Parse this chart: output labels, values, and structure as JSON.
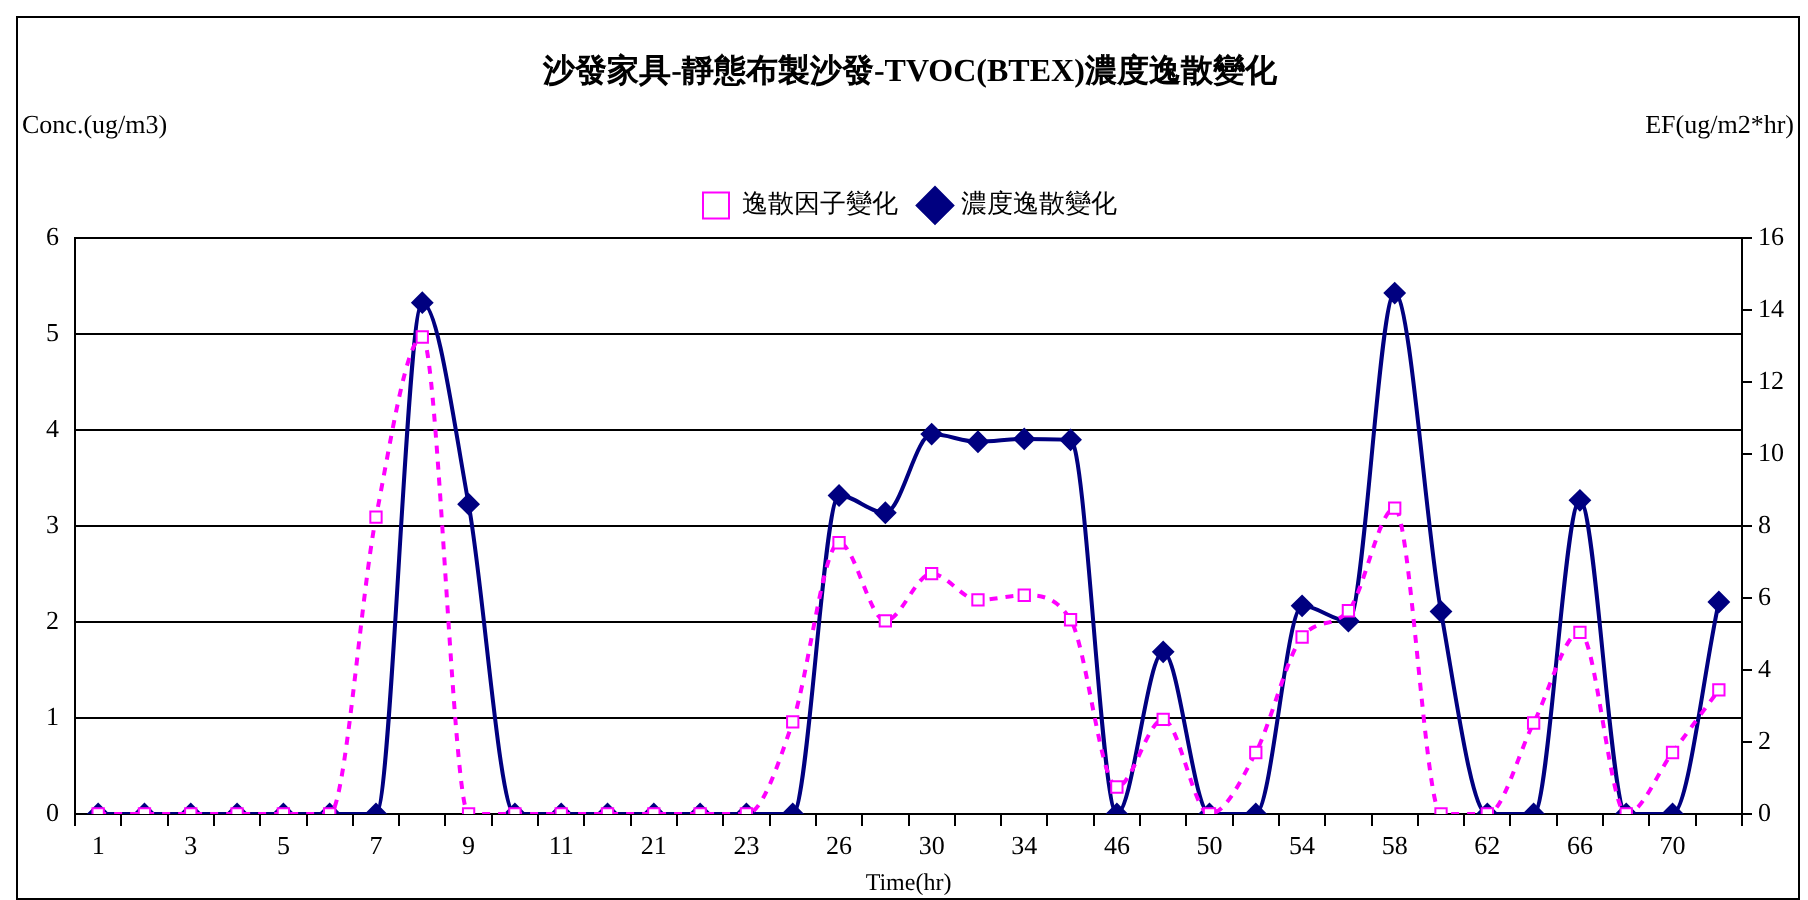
{
  "chart_data": {
    "type": "line",
    "title": "沙發家具-靜態布製沙發-TVOC(BTEX)濃度逸散變化",
    "xlabel": "Time(hr)",
    "ylabel": "Conc.(ug/m3)",
    "y2label": "EF(ug/m2*hr)",
    "categories": [
      "1",
      null,
      "3",
      null,
      "5",
      null,
      "7",
      null,
      "9",
      null,
      "11",
      null,
      "21",
      null,
      "23",
      null,
      "26",
      null,
      "30",
      null,
      "34",
      null,
      "46",
      null,
      "50",
      null,
      "54",
      null,
      "58",
      null,
      "62",
      null,
      "66",
      null,
      "70",
      null
    ],
    "series": [
      {
        "name": "濃度逸散變化",
        "color": "#000080",
        "marker": "diamond",
        "line_style": "solid",
        "values": [
          0,
          0,
          0,
          0,
          0,
          0,
          0,
          5.33,
          3.23,
          0,
          0,
          0,
          0,
          0,
          0,
          0,
          3.32,
          3.14,
          3.96,
          3.88,
          3.91,
          3.9,
          0,
          1.69,
          0,
          0,
          2.17,
          2.01,
          5.43,
          2.11,
          0,
          0,
          3.27,
          0,
          0,
          2.21
        ]
      },
      {
        "name": "逸散因子變化",
        "color": "#ff00ff",
        "marker": "square",
        "line_style": "dashed",
        "axis": "y2",
        "values": [
          0,
          0,
          0,
          0,
          0,
          0,
          8.25,
          13.26,
          0,
          0,
          0,
          0,
          0,
          0,
          0,
          2.56,
          7.54,
          5.37,
          6.68,
          5.95,
          6.08,
          5.4,
          0.75,
          2.63,
          0,
          1.71,
          4.92,
          5.65,
          8.5,
          0,
          0,
          2.53,
          5.05,
          0,
          1.71,
          3.45
        ]
      }
    ],
    "ylim": [
      0,
      6
    ],
    "yticks": [
      0,
      1,
      2,
      3,
      4,
      5,
      6
    ],
    "y2lim": [
      0,
      16
    ],
    "y2ticks": [
      0,
      2,
      4,
      6,
      8,
      10,
      12,
      14,
      16
    ],
    "grid": "y",
    "legend": "top"
  }
}
